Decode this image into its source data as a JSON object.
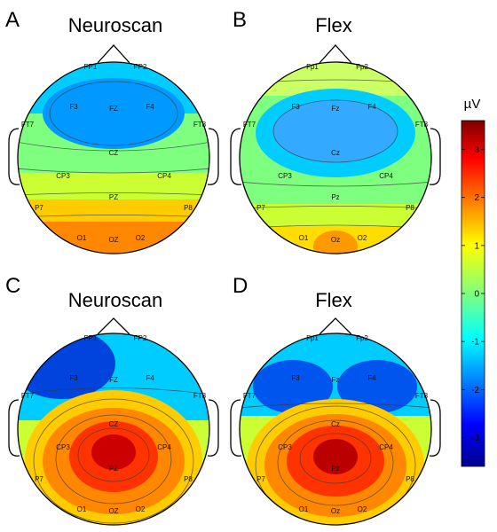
{
  "panels": [
    {
      "letter": "A",
      "title": "Neuroscan",
      "electrodes": [
        "FP1",
        "FP2",
        "F3",
        "FZ",
        "F4",
        "FT7",
        "FT8",
        "CZ",
        "CP3",
        "CP4",
        "PZ",
        "P7",
        "P8",
        "O1",
        "OZ",
        "O2"
      ]
    },
    {
      "letter": "B",
      "title": "Flex",
      "electrodes": [
        "Fp1",
        "Fp2",
        "F3",
        "Fz",
        "F4",
        "FT7",
        "FT8",
        "Cz",
        "CP3",
        "CP4",
        "Pz",
        "P7",
        "P8",
        "O1",
        "Oz",
        "O2"
      ]
    },
    {
      "letter": "C",
      "title": "Neuroscan",
      "electrodes": [
        "FP1",
        "FP2",
        "F3",
        "FZ",
        "F4",
        "FT7",
        "FT8",
        "CZ",
        "CP3",
        "CP4",
        "PZ",
        "P7",
        "P8",
        "O1",
        "OZ",
        "O2"
      ]
    },
    {
      "letter": "D",
      "title": "Flex",
      "electrodes": [
        "Fp1",
        "Fp2",
        "F3",
        "Fz",
        "F4",
        "FT7",
        "FT8",
        "Cz",
        "CP3",
        "CP4",
        "Pz",
        "P7",
        "P8",
        "O1",
        "Oz",
        "O2"
      ]
    }
  ],
  "colorbar": {
    "unit": "µV",
    "ticks": [
      3,
      2,
      1,
      0,
      -1,
      -2,
      -3
    ],
    "range": [
      -3.6,
      3.6
    ],
    "colors": [
      "#7f0000",
      "#ff0000",
      "#ffff00",
      "#00ffff",
      "#0000ff",
      "#00008f"
    ]
  }
}
